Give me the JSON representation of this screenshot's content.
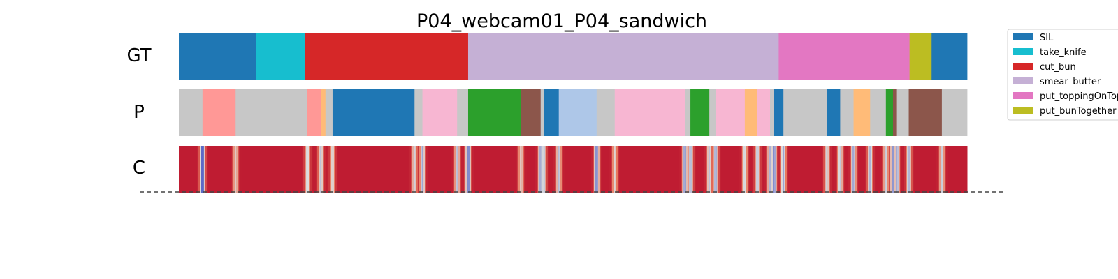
{
  "chart_data": {
    "type": "segmentation_timeline",
    "title": "P04_webcam01_P04_sandwich",
    "x_unit": "fraction of video duration",
    "xlim": [
      0,
      1
    ],
    "rows": [
      "GT",
      "P",
      "C"
    ],
    "legend": {
      "placement": "top-right",
      "entries": [
        {
          "label": "SIL",
          "color": "#1f77b4"
        },
        {
          "label": "take_knife",
          "color": "#17becf"
        },
        {
          "label": "cut_bun",
          "color": "#d62728"
        },
        {
          "label": "smear_butter",
          "color": "#c5b0d5"
        },
        {
          "label": "put_toppingOnTop",
          "color": "#e377c2"
        },
        {
          "label": "put_bunTogether",
          "color": "#bcbd22"
        }
      ]
    },
    "gt_segments": [
      {
        "start": 0.0,
        "end": 0.098,
        "color": "#1f77b4"
      },
      {
        "start": 0.098,
        "end": 0.16,
        "color": "#17becf"
      },
      {
        "start": 0.16,
        "end": 0.367,
        "color": "#d62728"
      },
      {
        "start": 0.367,
        "end": 0.761,
        "color": "#c5b0d5"
      },
      {
        "start": 0.761,
        "end": 0.927,
        "color": "#e377c2"
      },
      {
        "start": 0.927,
        "end": 0.955,
        "color": "#bcbd22"
      },
      {
        "start": 0.955,
        "end": 1.0,
        "color": "#1f77b4"
      }
    ],
    "p_segments": [
      {
        "start": 0.0,
        "end": 0.03,
        "color": "#c7c7c7"
      },
      {
        "start": 0.03,
        "end": 0.072,
        "color": "#ff9896"
      },
      {
        "start": 0.072,
        "end": 0.163,
        "color": "#c7c7c7"
      },
      {
        "start": 0.163,
        "end": 0.18,
        "color": "#ff9896"
      },
      {
        "start": 0.18,
        "end": 0.186,
        "color": "#ffbb78"
      },
      {
        "start": 0.186,
        "end": 0.195,
        "color": "#c7c7c7"
      },
      {
        "start": 0.195,
        "end": 0.299,
        "color": "#1f77b4"
      },
      {
        "start": 0.299,
        "end": 0.309,
        "color": "#c7c7c7"
      },
      {
        "start": 0.309,
        "end": 0.353,
        "color": "#f7b6d2"
      },
      {
        "start": 0.353,
        "end": 0.367,
        "color": "#c7c7c7"
      },
      {
        "start": 0.367,
        "end": 0.434,
        "color": "#2ca02c"
      },
      {
        "start": 0.434,
        "end": 0.459,
        "color": "#8c564b"
      },
      {
        "start": 0.459,
        "end": 0.463,
        "color": "#c7c7c7"
      },
      {
        "start": 0.463,
        "end": 0.482,
        "color": "#1f77b4"
      },
      {
        "start": 0.482,
        "end": 0.53,
        "color": "#aec7e8"
      },
      {
        "start": 0.53,
        "end": 0.553,
        "color": "#c7c7c7"
      },
      {
        "start": 0.553,
        "end": 0.642,
        "color": "#f7b6d2"
      },
      {
        "start": 0.642,
        "end": 0.649,
        "color": "#c7c7c7"
      },
      {
        "start": 0.649,
        "end": 0.673,
        "color": "#2ca02c"
      },
      {
        "start": 0.673,
        "end": 0.681,
        "color": "#c7c7c7"
      },
      {
        "start": 0.681,
        "end": 0.718,
        "color": "#f7b6d2"
      },
      {
        "start": 0.718,
        "end": 0.734,
        "color": "#ffbb78"
      },
      {
        "start": 0.734,
        "end": 0.75,
        "color": "#f7b6d2"
      },
      {
        "start": 0.75,
        "end": 0.755,
        "color": "#c7c7c7"
      },
      {
        "start": 0.755,
        "end": 0.767,
        "color": "#1f77b4"
      },
      {
        "start": 0.767,
        "end": 0.822,
        "color": "#c7c7c7"
      },
      {
        "start": 0.822,
        "end": 0.839,
        "color": "#1f77b4"
      },
      {
        "start": 0.839,
        "end": 0.856,
        "color": "#c7c7c7"
      },
      {
        "start": 0.856,
        "end": 0.877,
        "color": "#ffbb78"
      },
      {
        "start": 0.877,
        "end": 0.897,
        "color": "#c7c7c7"
      },
      {
        "start": 0.897,
        "end": 0.906,
        "color": "#2ca02c"
      },
      {
        "start": 0.906,
        "end": 0.911,
        "color": "#8c564b"
      },
      {
        "start": 0.911,
        "end": 0.926,
        "color": "#c7c7c7"
      },
      {
        "start": 0.926,
        "end": 0.968,
        "color": "#8c564b"
      },
      {
        "start": 0.968,
        "end": 1.0,
        "color": "#c7c7c7"
      }
    ],
    "confidence": {
      "colormap": "coolwarm",
      "base_value": 0.95,
      "dips": [
        {
          "at": 0.03,
          "value": 0.05
        },
        {
          "at": 0.072,
          "value": 0.55
        },
        {
          "at": 0.163,
          "value": 0.45
        },
        {
          "at": 0.18,
          "value": 0.4
        },
        {
          "at": 0.195,
          "value": 0.5
        },
        {
          "at": 0.299,
          "value": 0.45
        },
        {
          "at": 0.309,
          "value": 0.3
        },
        {
          "at": 0.353,
          "value": 0.35
        },
        {
          "at": 0.367,
          "value": 0.15
        },
        {
          "at": 0.434,
          "value": 0.55
        },
        {
          "at": 0.459,
          "value": 0.3
        },
        {
          "at": 0.463,
          "value": 0.4
        },
        {
          "at": 0.482,
          "value": 0.35
        },
        {
          "at": 0.53,
          "value": 0.2
        },
        {
          "at": 0.553,
          "value": 0.5
        },
        {
          "at": 0.642,
          "value": 0.25
        },
        {
          "at": 0.649,
          "value": 0.35
        },
        {
          "at": 0.673,
          "value": 0.4
        },
        {
          "at": 0.681,
          "value": 0.3
        },
        {
          "at": 0.718,
          "value": 0.45
        },
        {
          "at": 0.734,
          "value": 0.4
        },
        {
          "at": 0.75,
          "value": 0.3
        },
        {
          "at": 0.755,
          "value": 0.2
        },
        {
          "at": 0.767,
          "value": 0.3
        },
        {
          "at": 0.822,
          "value": 0.45
        },
        {
          "at": 0.839,
          "value": 0.4
        },
        {
          "at": 0.856,
          "value": 0.3
        },
        {
          "at": 0.877,
          "value": 0.35
        },
        {
          "at": 0.897,
          "value": 0.4
        },
        {
          "at": 0.906,
          "value": 0.2
        },
        {
          "at": 0.911,
          "value": 0.3
        },
        {
          "at": 0.926,
          "value": 0.35
        },
        {
          "at": 0.968,
          "value": 0.4
        }
      ]
    }
  }
}
